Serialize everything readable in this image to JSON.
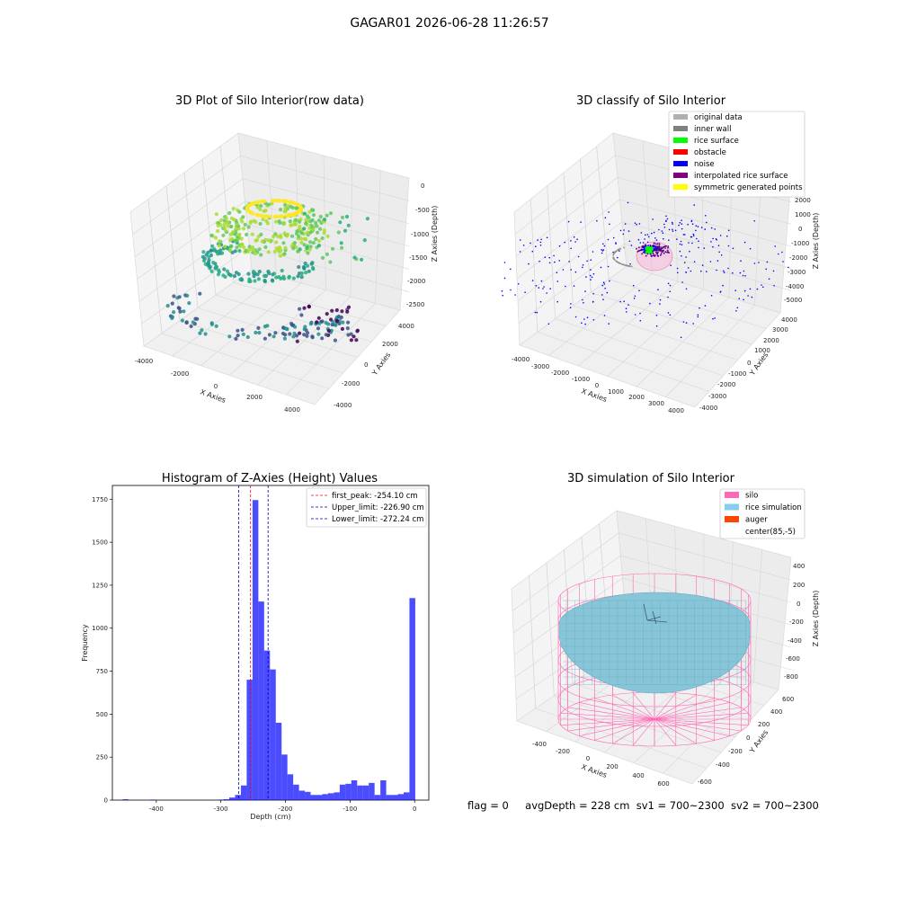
{
  "figure": {
    "title": "GAGAR01 2026-06-28 11:26:57",
    "status": {
      "flag": "flag = 0",
      "avg_depth": "avgDepth = 228 cm",
      "sv1": "sv1 = 700~2300",
      "sv2": "sv2 = 700~2300"
    }
  },
  "chart_data": [
    {
      "type": "scatter",
      "title": "3D Plot of Silo Interior(row data)",
      "xlabel": "X Axies",
      "ylabel": "Y Axies",
      "zlabel": "Z Axies (Depth)",
      "xlim": [
        -4500,
        4500
      ],
      "ylim": [
        -4500,
        4500
      ],
      "zlim": [
        -2600,
        100
      ],
      "xticks": [
        "-4000",
        "-2000",
        "0",
        "2000",
        "4000"
      ],
      "yticks": [
        "-4000",
        "-2000",
        "0",
        "2000",
        "4000"
      ],
      "zticks": [
        "0",
        "-500",
        "-1000",
        "-1500",
        "-2000",
        "-2500"
      ],
      "colormap": "viridis",
      "grid": true
    },
    {
      "type": "scatter",
      "title": "3D classify of Silo Interior",
      "xlabel": "X Axies",
      "ylabel": "Y Axies",
      "zlabel": "Z Axies (Depth)",
      "xlim": [
        -4000,
        4000
      ],
      "ylim": [
        -4000,
        4000
      ],
      "zlim": [
        -5000,
        2000
      ],
      "xticks": [
        "-4000",
        "-3000",
        "-2000",
        "-1000",
        "0",
        "1000",
        "2000",
        "3000",
        "4000"
      ],
      "yticks": [
        "-4000",
        "-3000",
        "-2000",
        "-1000",
        "0",
        "1000",
        "2000",
        "3000",
        "4000"
      ],
      "zticks": [
        "2000",
        "1000",
        "0",
        "-1000",
        "-2000",
        "-3000",
        "-4000",
        "-5000"
      ],
      "legend_position": "top-right",
      "legend": [
        {
          "label": "original data",
          "color": "#b0b0b0"
        },
        {
          "label": "inner wall",
          "color": "#808080"
        },
        {
          "label": "rice surface",
          "color": "#00ff00"
        },
        {
          "label": "obstacle",
          "color": "#ff0000"
        },
        {
          "label": "noise",
          "color": "#0000ff"
        },
        {
          "label": "interpolated rice surface",
          "color": "#800080"
        },
        {
          "label": "symmetric generated points",
          "color": "#ffff00"
        }
      ],
      "grid": true
    },
    {
      "type": "bar",
      "title": "Histogram of Z-Axies (Height) Values",
      "xlabel": "Depth (cm)",
      "ylabel": "Frequency",
      "xlim": [
        -468,
        22
      ],
      "ylim": [
        0,
        1830
      ],
      "xticks": [
        -400,
        -300,
        -200,
        -100,
        0
      ],
      "yticks": [
        0,
        250,
        500,
        750,
        1000,
        1250,
        1500,
        1750
      ],
      "bar_color": "#0000ff",
      "bins": [
        {
          "x0": -452,
          "x1": -443,
          "v": 5
        },
        {
          "x0": -411,
          "x1": -402,
          "v": 3
        },
        {
          "x0": -305,
          "x1": -296,
          "v": 3
        },
        {
          "x0": -296,
          "x1": -287,
          "v": 5
        },
        {
          "x0": -287,
          "x1": -278,
          "v": 15
        },
        {
          "x0": -278,
          "x1": -269,
          "v": 30
        },
        {
          "x0": -269,
          "x1": -260,
          "v": 85
        },
        {
          "x0": -260,
          "x1": -251,
          "v": 700
        },
        {
          "x0": -251,
          "x1": -242,
          "v": 1745
        },
        {
          "x0": -242,
          "x1": -233,
          "v": 1155
        },
        {
          "x0": -233,
          "x1": -224,
          "v": 870
        },
        {
          "x0": -224,
          "x1": -215,
          "v": 760
        },
        {
          "x0": -215,
          "x1": -206,
          "v": 450
        },
        {
          "x0": -206,
          "x1": -197,
          "v": 265
        },
        {
          "x0": -197,
          "x1": -188,
          "v": 150
        },
        {
          "x0": -188,
          "x1": -179,
          "v": 90
        },
        {
          "x0": -179,
          "x1": -170,
          "v": 55
        },
        {
          "x0": -170,
          "x1": -161,
          "v": 48
        },
        {
          "x0": -161,
          "x1": -152,
          "v": 30
        },
        {
          "x0": -152,
          "x1": -143,
          "v": 30
        },
        {
          "x0": -143,
          "x1": -134,
          "v": 35
        },
        {
          "x0": -134,
          "x1": -125,
          "v": 40
        },
        {
          "x0": -125,
          "x1": -116,
          "v": 45
        },
        {
          "x0": -116,
          "x1": -107,
          "v": 90
        },
        {
          "x0": -107,
          "x1": -98,
          "v": 95
        },
        {
          "x0": -98,
          "x1": -89,
          "v": 115
        },
        {
          "x0": -89,
          "x1": -80,
          "v": 85
        },
        {
          "x0": -80,
          "x1": -71,
          "v": 85
        },
        {
          "x0": -71,
          "x1": -62,
          "v": 100
        },
        {
          "x0": -62,
          "x1": -53,
          "v": 30
        },
        {
          "x0": -53,
          "x1": -44,
          "v": 115
        },
        {
          "x0": -44,
          "x1": -35,
          "v": 30
        },
        {
          "x0": -35,
          "x1": -26,
          "v": 30
        },
        {
          "x0": -26,
          "x1": -17,
          "v": 35
        },
        {
          "x0": -17,
          "x1": -8,
          "v": 45
        },
        {
          "x0": -8,
          "x1": 1,
          "v": 1175
        }
      ],
      "vlines": [
        {
          "label": "first_peak: -254.10 cm",
          "x": -254.1,
          "color": "#ff0000"
        },
        {
          "label": "Upper_limit: -226.90 cm",
          "x": -226.9,
          "color": "#0000aa"
        },
        {
          "label": "Lower_limit: -272.24 cm",
          "x": -272.24,
          "color": "#0000aa"
        }
      ],
      "legend_position": "top-right"
    },
    {
      "type": "surface",
      "title": "3D simulation of Silo Interior",
      "xlabel": "X Axies",
      "ylabel": "Y Axies",
      "zlabel": "Z Axies (Depth)",
      "xlim": [
        -600,
        700
      ],
      "ylim": [
        -700,
        700
      ],
      "zlim": [
        -900,
        450
      ],
      "xticks": [
        "-400",
        "-200",
        "0",
        "200",
        "400",
        "600"
      ],
      "yticks": [
        "-600",
        "-400",
        "-200",
        "0",
        "200",
        "400",
        "600"
      ],
      "zticks": [
        "400",
        "200",
        "0",
        "-200",
        "-400",
        "-600",
        "-800"
      ],
      "legend_position": "top-right",
      "legend": [
        {
          "label": "silo",
          "color": "#ff69b4"
        },
        {
          "label": "rice simulation",
          "color": "#87ceeb"
        },
        {
          "label": "auger",
          "color": "#ff4500"
        },
        {
          "label": "center(85,-5)",
          "color": "#ffffff"
        }
      ],
      "grid": true
    }
  ]
}
